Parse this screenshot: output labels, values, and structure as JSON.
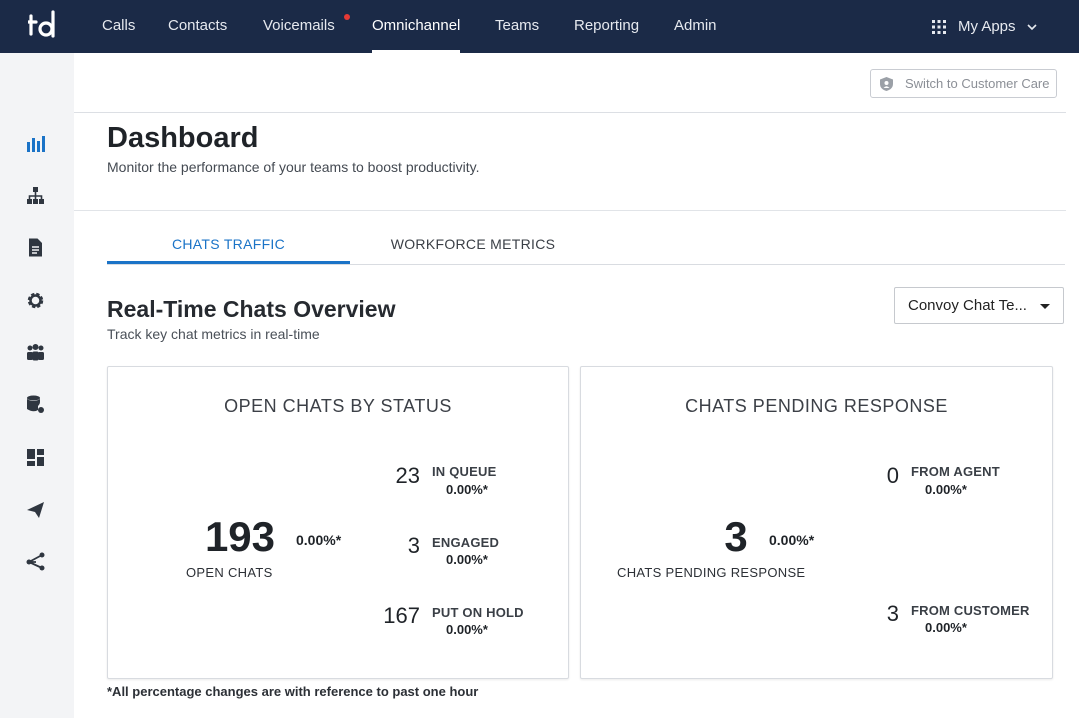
{
  "app": {
    "logo_text": "td",
    "nav": [
      {
        "label": "Calls"
      },
      {
        "label": "Contacts"
      },
      {
        "label": "Voicemails"
      },
      {
        "label": "Omnichannel"
      },
      {
        "label": "Teams"
      },
      {
        "label": "Reporting"
      },
      {
        "label": "Admin"
      }
    ],
    "active_nav": "Omnichannel",
    "voicemail_badge_color": "#e53935",
    "my_apps_label": "My Apps"
  },
  "sidebar": {
    "items": [
      {
        "icon": "bar-chart-icon",
        "active": true
      },
      {
        "icon": "org-chart-icon"
      },
      {
        "icon": "document-icon"
      },
      {
        "icon": "gear-icon"
      },
      {
        "icon": "group-icon"
      },
      {
        "icon": "database-settings-icon"
      },
      {
        "icon": "dashboard-layout-icon"
      },
      {
        "icon": "send-icon"
      },
      {
        "icon": "share-nodes-icon"
      }
    ],
    "active_color": "#1a73c7"
  },
  "header": {
    "switch_button_label": "Switch to Customer Care"
  },
  "page": {
    "title": "Dashboard",
    "subtitle": "Monitor the performance of your teams to boost productivity."
  },
  "tabs": [
    {
      "label": "CHATS TRAFFIC",
      "active": true
    },
    {
      "label": "WORKFORCE METRICS",
      "active": false
    }
  ],
  "overview": {
    "title": "Real-Time Chats Overview",
    "subtitle": "Track key chat metrics in real-time",
    "team_select_value": "Convoy Chat Te..."
  },
  "open_chats_card": {
    "title": "OPEN CHATS BY STATUS",
    "total_value": "193",
    "total_label": "OPEN CHATS",
    "total_change": "0.00%*",
    "metrics": [
      {
        "value": "23",
        "label": "IN QUEUE",
        "change": "0.00%*"
      },
      {
        "value": "3",
        "label": "ENGAGED",
        "change": "0.00%*"
      },
      {
        "value": "167",
        "label": "PUT ON HOLD",
        "change": "0.00%*"
      }
    ]
  },
  "pending_card": {
    "title": "CHATS PENDING RESPONSE",
    "total_value": "3",
    "total_label": "CHATS PENDING RESPONSE",
    "total_change": "0.00%*",
    "metrics": [
      {
        "value": "0",
        "label": "FROM AGENT",
        "change": "0.00%*"
      },
      {
        "value": "3",
        "label": "FROM CUSTOMER",
        "change": "0.00%*"
      }
    ]
  },
  "footnote": "*All percentage changes are with reference to past one hour"
}
